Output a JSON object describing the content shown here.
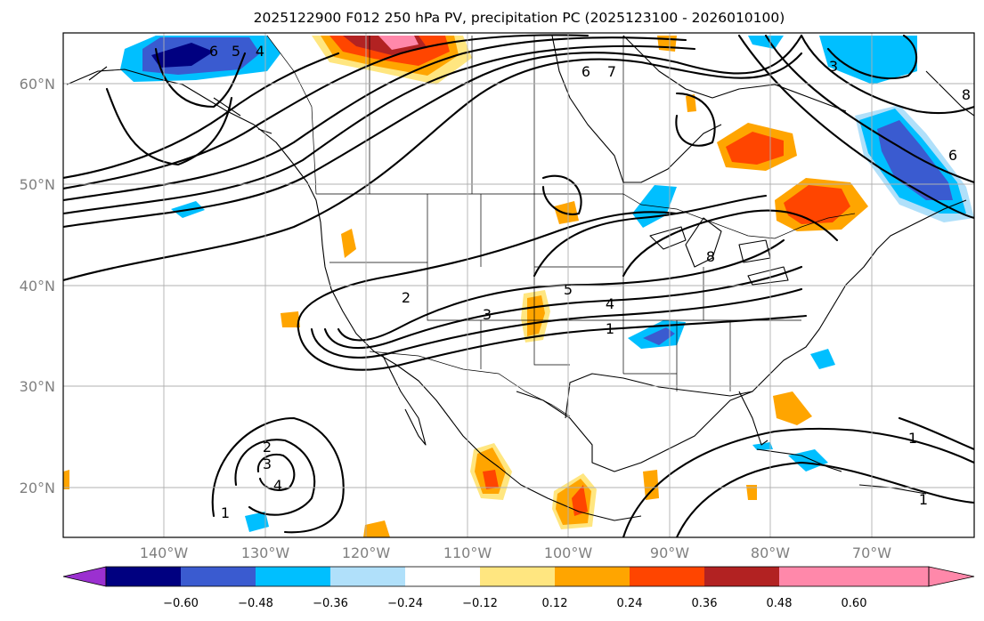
{
  "title": "2025122900 F012 250 hPa PV, precipitation PC (2025123100 - 2026010100)",
  "latitude_labels": [
    "60°N",
    "50°N",
    "40°N",
    "30°N",
    "20°N"
  ],
  "longitude_labels": [
    "140°W",
    "130°W",
    "120°W",
    "110°W",
    "100°W",
    "90°W",
    "80°W",
    "70°W"
  ],
  "colorbar": {
    "ticks": [
      "−0.60",
      "−0.48",
      "−0.36",
      "−0.24",
      "−0.12",
      "0.12",
      "0.24",
      "0.36",
      "0.48",
      "0.60"
    ],
    "colors": [
      "#9b30d0",
      "#000080",
      "#3a5bd0",
      "#00bfff",
      "#b0e0fa",
      "#ffffff",
      "#ffe680",
      "#ffa500",
      "#ff4500",
      "#b22222",
      "#ff88aa"
    ]
  },
  "contour_labels": [
    {
      "text": "6"
    },
    {
      "text": "5"
    },
    {
      "text": "4"
    },
    {
      "text": "6"
    },
    {
      "text": "7"
    },
    {
      "text": "2"
    },
    {
      "text": "3"
    },
    {
      "text": "5"
    },
    {
      "text": "4"
    },
    {
      "text": "1"
    },
    {
      "text": "8"
    },
    {
      "text": "2"
    },
    {
      "text": "3"
    },
    {
      "text": "4"
    },
    {
      "text": "1"
    },
    {
      "text": "1"
    },
    {
      "text": "1"
    },
    {
      "text": "3"
    },
    {
      "text": "6"
    },
    {
      "text": "8"
    }
  ]
}
